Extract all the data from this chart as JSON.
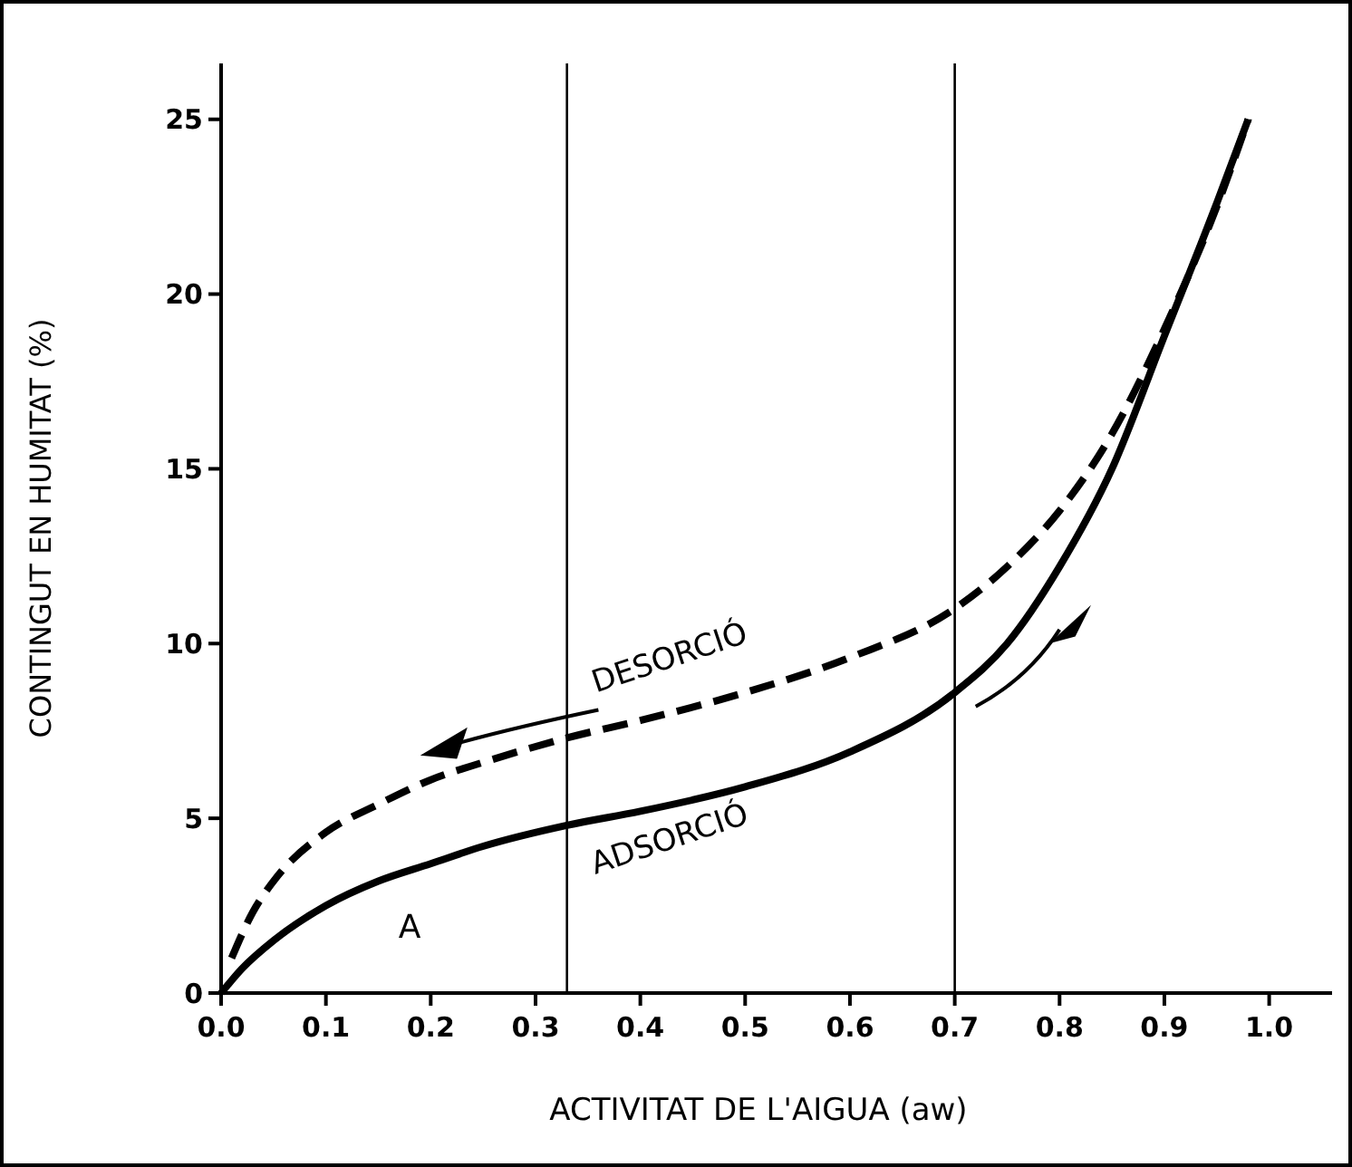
{
  "chart_data": {
    "type": "line",
    "xlabel": "ACTIVITAT DE L'AIGUA  (aw)",
    "ylabel": "CONTINGUT EN HUMITAT (%)",
    "xlim": [
      0,
      1.06
    ],
    "ylim": [
      0,
      26.6
    ],
    "xticks": [
      {
        "value": 0,
        "label": "0.0"
      },
      {
        "value": 0.1,
        "label": "0.1"
      },
      {
        "value": 0.2,
        "label": "0.2"
      },
      {
        "value": 0.3,
        "label": "0.3"
      },
      {
        "value": 0.4,
        "label": "0.4"
      },
      {
        "value": 0.5,
        "label": "0.5"
      },
      {
        "value": 0.6,
        "label": "0.6"
      },
      {
        "value": 0.7,
        "label": "0.7"
      },
      {
        "value": 0.8,
        "label": "0.8"
      },
      {
        "value": 0.9,
        "label": "0.9"
      },
      {
        "value": 1,
        "label": "1.0"
      }
    ],
    "yticks": [
      0,
      5,
      10,
      15,
      20,
      25
    ],
    "grid": false,
    "series": [
      {
        "name": "ADSORCIÓ",
        "color": "#000000",
        "line_style": "solid",
        "x": [
          0,
          0.02,
          0.05,
          0.1,
          0.15,
          0.2,
          0.25,
          0.33,
          0.4,
          0.5,
          0.6,
          0.7,
          0.75,
          0.8,
          0.85,
          0.9,
          0.95,
          0.98
        ],
        "values": [
          0,
          0.7,
          1.5,
          2.5,
          3.2,
          3.7,
          4.2,
          4.8,
          5.2,
          5.9,
          6.9,
          8.6,
          10,
          12.2,
          15,
          18.8,
          22.6,
          25
        ]
      },
      {
        "name": "DESORCIÓ",
        "color": "#000000",
        "line_style": "dashed",
        "x": [
          0.01,
          0.03,
          0.05,
          0.1,
          0.15,
          0.2,
          0.25,
          0.33,
          0.4,
          0.5,
          0.6,
          0.7,
          0.75,
          0.8,
          0.85,
          0.9,
          0.95,
          0.98
        ],
        "values": [
          1,
          2.3,
          3.2,
          4.6,
          5.4,
          6.1,
          6.6,
          7.3,
          7.8,
          8.6,
          9.6,
          11,
          12.2,
          13.8,
          16,
          19,
          22.5,
          25
        ]
      }
    ],
    "ref_lines": [
      {
        "axis": "x",
        "value": 0.33
      },
      {
        "axis": "x",
        "value": 0.7
      }
    ],
    "annotations": [
      "A"
    ]
  }
}
